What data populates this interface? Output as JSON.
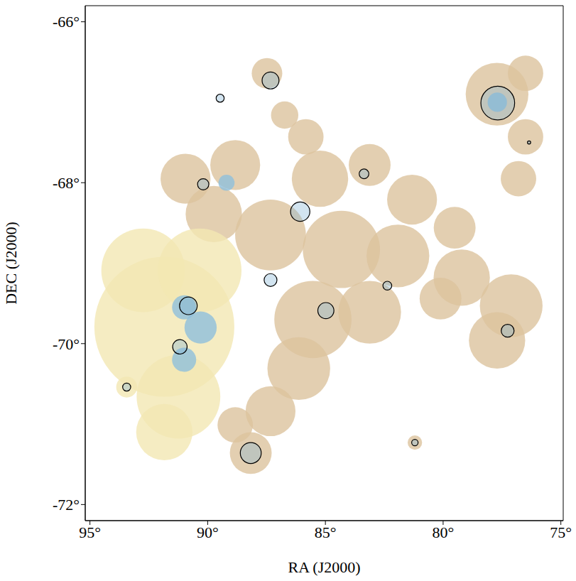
{
  "chart_data": {
    "type": "scatter",
    "x_label": "RA (J2000)",
    "y_label": "DEC (J2000)",
    "xlim": [
      95.2,
      74.9
    ],
    "ylim": [
      -72.2,
      -65.8
    ],
    "xticks": [
      {
        "value": 95,
        "label": "95°"
      },
      {
        "value": 90,
        "label": "90°"
      },
      {
        "value": 85,
        "label": "85°"
      },
      {
        "value": 80,
        "label": "80°"
      },
      {
        "value": 75,
        "label": "75°"
      }
    ],
    "yticks": [
      {
        "value": -72,
        "label": "-72°"
      },
      {
        "value": -70,
        "label": "-70°"
      },
      {
        "value": -68,
        "label": "-68°"
      },
      {
        "value": -66,
        "label": "-66°"
      }
    ],
    "emission": [
      {
        "color": "#dcc39e",
        "points": [
          [
            87.48,
            -66.64,
            0.19
          ],
          [
            86.73,
            -67.16,
            0.17
          ],
          [
            85.83,
            -67.43,
            0.22
          ],
          [
            88.83,
            -67.78,
            0.31
          ],
          [
            85.23,
            -67.95,
            0.35
          ],
          [
            83.12,
            -67.78,
            0.26
          ],
          [
            81.32,
            -68.21,
            0.31
          ],
          [
            79.51,
            -68.56,
            0.26
          ],
          [
            77.71,
            -66.9,
            0.39
          ],
          [
            76.5,
            -66.64,
            0.22
          ],
          [
            76.5,
            -67.43,
            0.22
          ],
          [
            76.8,
            -67.95,
            0.22
          ],
          [
            87.33,
            -68.65,
            0.44
          ],
          [
            84.32,
            -68.83,
            0.48
          ],
          [
            81.92,
            -68.91,
            0.39
          ],
          [
            85.53,
            -69.7,
            0.48
          ],
          [
            83.12,
            -69.61,
            0.39
          ],
          [
            86.13,
            -70.31,
            0.39
          ],
          [
            87.33,
            -70.84,
            0.31
          ],
          [
            79.21,
            -69.18,
            0.35
          ],
          [
            77.11,
            -69.53,
            0.39
          ],
          [
            77.71,
            -69.96,
            0.35
          ],
          [
            80.11,
            -69.44,
            0.26
          ],
          [
            88.17,
            -71.36,
            0.26
          ],
          [
            88.83,
            -71.01,
            0.22
          ],
          [
            81.2,
            -71.23,
            0.09
          ],
          [
            89.74,
            -68.39,
            0.35
          ],
          [
            90.94,
            -67.95,
            0.31
          ]
        ]
      },
      {
        "color": "#f3e7b3",
        "points": [
          [
            91.84,
            -69.79,
            0.87
          ],
          [
            92.74,
            -69.09,
            0.52
          ],
          [
            90.34,
            -69.09,
            0.52
          ],
          [
            91.24,
            -70.66,
            0.52
          ],
          [
            91.84,
            -71.1,
            0.35
          ],
          [
            93.44,
            -70.54,
            0.13
          ]
        ]
      },
      {
        "color": "#8fbfdc",
        "points": [
          [
            91.0,
            -69.55,
            0.15
          ],
          [
            90.3,
            -69.8,
            0.2
          ],
          [
            91.0,
            -70.2,
            0.15
          ],
          [
            89.2,
            -68.0,
            0.1
          ],
          [
            77.7,
            -67.0,
            0.12
          ]
        ]
      }
    ],
    "regions": {
      "color": "#000000",
      "points": [
        [
          87.33,
          -66.73,
          0.105
        ],
        [
          89.47,
          -66.95,
          0.05
        ],
        [
          77.68,
          -67.01,
          0.21
        ],
        [
          76.35,
          -67.5,
          0.02
        ],
        [
          83.36,
          -67.89,
          0.06
        ],
        [
          90.19,
          -68.02,
          0.07
        ],
        [
          86.07,
          -68.36,
          0.12
        ],
        [
          87.33,
          -69.21,
          0.08
        ],
        [
          82.37,
          -69.28,
          0.055
        ],
        [
          90.82,
          -69.53,
          0.11
        ],
        [
          84.98,
          -69.59,
          0.1
        ],
        [
          77.26,
          -69.84,
          0.08
        ],
        [
          91.18,
          -70.04,
          0.09
        ],
        [
          93.44,
          -70.54,
          0.05
        ],
        [
          88.17,
          -71.36,
          0.13
        ],
        [
          81.2,
          -71.23,
          0.04
        ]
      ]
    }
  }
}
